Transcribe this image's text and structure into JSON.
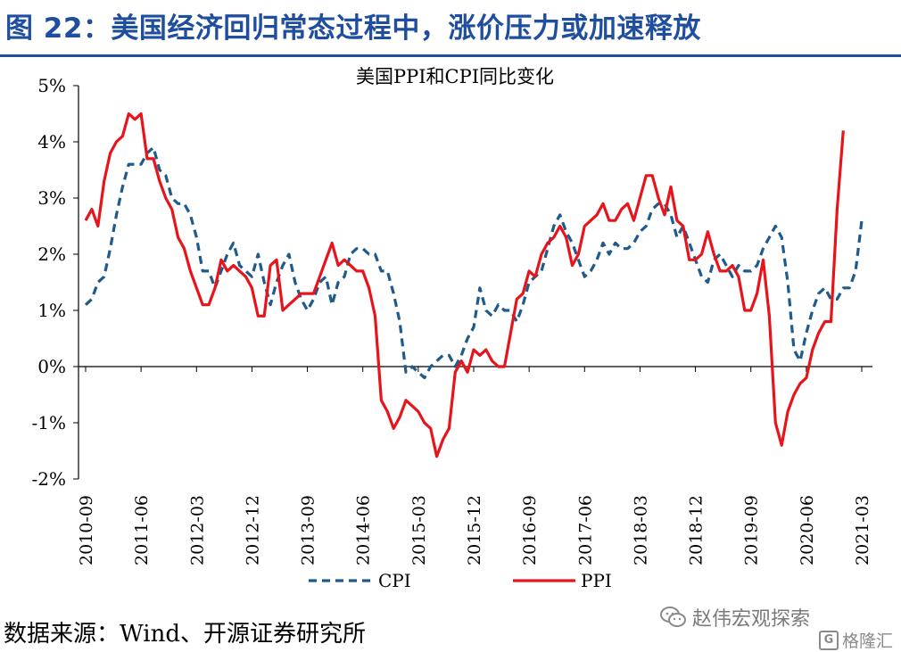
{
  "figure_title": "图 22：美国经济回归常态过程中，涨价压力或加速释放",
  "source_text": "数据来源：Wind、开源证券研究所",
  "watermark": {
    "wechat_text": "赵伟宏观探索",
    "wechat_icon": "wechat-icon",
    "site_text": "格隆汇",
    "site_icon": "g-logo-icon"
  },
  "colors": {
    "title": "#1f4e9e",
    "cpi": "#1f5a8c",
    "ppi": "#e8141c"
  },
  "chart_data": {
    "type": "line",
    "title": "美国PPI和CPI同比变化",
    "ylim": [
      -2,
      5
    ],
    "y_ticks": [
      "5%",
      "4%",
      "3%",
      "2%",
      "1%",
      "0%",
      "-1%",
      "-2%"
    ],
    "x_tick_labels": [
      "2010-09",
      "2011-06",
      "2012-03",
      "2012-12",
      "2013-09",
      "2014-06",
      "2015-03",
      "2015-12",
      "2016-09",
      "2017-06",
      "2018-03",
      "2018-12",
      "2019-09",
      "2020-06",
      "2021-03"
    ],
    "x_start": "2010-09",
    "grid": false,
    "legend_position": "bottom",
    "series": [
      {
        "name": "CPI",
        "style": "dashed",
        "values": [
          1.1,
          1.2,
          1.5,
          1.6,
          2.1,
          2.7,
          3.2,
          3.6,
          3.6,
          3.6,
          3.8,
          3.9,
          3.5,
          3.4,
          3.0,
          2.9,
          2.9,
          2.7,
          2.3,
          1.7,
          1.7,
          1.4,
          1.7,
          2.0,
          2.2,
          1.8,
          1.7,
          1.6,
          2.0,
          1.5,
          1.1,
          1.5,
          1.8,
          2.0,
          1.5,
          1.2,
          1.0,
          1.2,
          1.5,
          1.6,
          1.1,
          1.5,
          1.6,
          2.0,
          2.1,
          2.1,
          2.0,
          2.0,
          1.7,
          1.7,
          1.3,
          0.8,
          -0.1,
          0.0,
          -0.1,
          -0.2,
          0.0,
          0.1,
          0.2,
          0.2,
          0.0,
          0.2,
          0.5,
          0.7,
          1.4,
          1.0,
          0.9,
          1.1,
          1.0,
          1.0,
          0.8,
          1.1,
          1.5,
          1.6,
          1.7,
          2.1,
          2.5,
          2.7,
          2.4,
          2.2,
          1.9,
          1.6,
          1.7,
          1.9,
          2.2,
          2.0,
          2.2,
          2.1,
          2.1,
          2.2,
          2.4,
          2.5,
          2.8,
          2.9,
          2.9,
          2.7,
          2.3,
          2.5,
          2.2,
          1.9,
          1.6,
          1.5,
          1.9,
          2.0,
          1.8,
          1.6,
          1.8,
          1.7,
          1.7,
          1.8,
          2.1,
          2.3,
          2.5,
          2.3,
          1.5,
          0.3,
          0.1,
          0.6,
          1.0,
          1.3,
          1.4,
          1.2,
          1.2,
          1.4,
          1.4,
          1.7,
          2.6
        ]
      },
      {
        "name": "PPI",
        "style": "solid",
        "values": [
          2.6,
          2.8,
          2.5,
          3.3,
          3.8,
          4.0,
          4.1,
          4.5,
          4.4,
          4.5,
          3.7,
          3.7,
          3.3,
          3.0,
          2.8,
          2.3,
          2.1,
          1.7,
          1.4,
          1.1,
          1.1,
          1.4,
          1.9,
          1.7,
          1.8,
          1.7,
          1.6,
          1.4,
          0.9,
          0.9,
          1.8,
          1.9,
          1.0,
          1.1,
          1.2,
          1.3,
          1.3,
          1.3,
          1.6,
          1.9,
          2.2,
          1.8,
          1.9,
          1.8,
          1.7,
          1.7,
          1.4,
          0.9,
          -0.6,
          -0.8,
          -1.1,
          -0.9,
          -0.6,
          -0.7,
          -0.8,
          -1.0,
          -1.1,
          -1.6,
          -1.3,
          -1.1,
          -0.1,
          0.1,
          -0.1,
          0.3,
          0.2,
          0.3,
          0.1,
          0.0,
          0.0,
          0.6,
          1.2,
          1.3,
          1.7,
          1.6,
          2.0,
          2.2,
          2.3,
          2.5,
          2.3,
          1.8,
          2.0,
          2.5,
          2.6,
          2.7,
          2.9,
          2.6,
          2.6,
          2.8,
          2.9,
          2.6,
          3.0,
          3.4,
          3.4,
          3.0,
          2.7,
          3.2,
          2.6,
          2.5,
          1.9,
          1.9,
          2.0,
          2.4,
          2.0,
          1.7,
          1.7,
          1.8,
          1.6,
          1.0,
          1.0,
          1.3,
          1.9,
          0.9,
          -1.0,
          -1.4,
          -0.8,
          -0.5,
          -0.3,
          -0.2,
          0.3,
          0.6,
          0.8,
          0.8,
          2.8,
          4.2
        ]
      }
    ]
  }
}
